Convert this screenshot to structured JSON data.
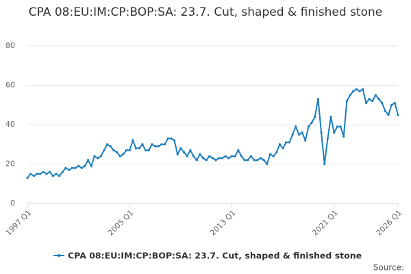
{
  "chart_data": {
    "type": "line",
    "title": "CPA 08:EU:IM:CP:BOP:SA: 23.7. Cut, shaped & finished stone",
    "source_label": "Source:",
    "categories": [
      "1997 Q1",
      null,
      null,
      null,
      null,
      null,
      null,
      null,
      null,
      null,
      null,
      null,
      null,
      null,
      null,
      null,
      null,
      null,
      null,
      null,
      null,
      null,
      null,
      null,
      null,
      null,
      null,
      null,
      null,
      null,
      null,
      null,
      "2005 Q1",
      null,
      null,
      null,
      null,
      null,
      null,
      null,
      null,
      null,
      null,
      null,
      null,
      null,
      null,
      null,
      null,
      null,
      null,
      null,
      null,
      null,
      null,
      null,
      null,
      null,
      null,
      null,
      null,
      null,
      null,
      null,
      "2013 Q1",
      null,
      null,
      null,
      null,
      null,
      null,
      null,
      null,
      null,
      null,
      null,
      null,
      null,
      null,
      null,
      null,
      null,
      null,
      null,
      null,
      null,
      null,
      null,
      null,
      null,
      null,
      null,
      null,
      null,
      null,
      null,
      "2021 Q1",
      null,
      null,
      null,
      null,
      null,
      null,
      null,
      null,
      null,
      null,
      null,
      null,
      null,
      null,
      null,
      null,
      null,
      null,
      null,
      "2026 Q1"
    ],
    "series": [
      {
        "name": "CPA 08:EU:IM:CP:BOP:SA: 23.7. Cut, shaped & finished stone",
        "color": "#1a7dbd",
        "values": [
          13,
          15,
          14,
          15,
          15,
          16,
          15,
          16,
          14,
          15,
          14,
          16,
          18,
          17,
          18,
          18,
          19,
          18,
          19,
          22,
          19,
          24,
          23,
          24,
          27,
          30,
          29,
          27,
          26,
          24,
          25,
          27,
          27,
          32,
          28,
          28,
          30,
          27,
          27,
          30,
          29,
          29,
          30,
          30,
          33,
          33,
          32,
          25,
          28,
          26,
          24,
          27,
          24,
          22,
          25,
          23,
          22,
          24,
          23,
          22,
          23,
          23,
          24,
          23,
          24,
          24,
          27,
          24,
          22,
          22,
          24,
          22,
          22,
          23,
          22,
          20,
          25,
          24,
          26,
          30,
          28,
          31,
          31,
          35,
          39,
          35,
          36,
          32,
          39,
          41,
          44,
          53,
          36,
          20,
          33,
          44,
          36,
          39,
          39,
          34,
          52,
          55,
          57,
          58,
          57,
          58,
          51,
          53,
          52,
          55,
          53,
          51,
          47,
          45,
          50,
          51,
          45
        ]
      }
    ],
    "ylim": [
      0,
      80
    ],
    "yticks": [
      0,
      20,
      40,
      60,
      80
    ],
    "grid": true
  }
}
